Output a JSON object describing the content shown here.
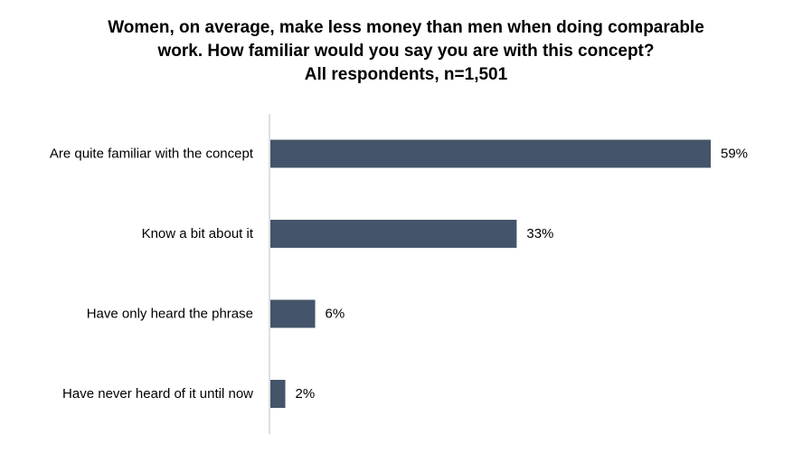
{
  "title_lines": [
    "Women, on average, make less money than men when doing comparable",
    "work. How familiar would you say you are with this concept?",
    "All respondents, n=1,501"
  ],
  "chart_data": {
    "type": "bar",
    "orientation": "horizontal",
    "title": "Women, on average, make less money than men when doing comparable work. How familiar would you say you are with this concept? All respondents, n=1,501",
    "categories": [
      "Are quite familiar with the concept",
      "Know a bit about it",
      "Have only heard the phrase",
      "Have never heard of it until now"
    ],
    "values": [
      59,
      33,
      6,
      2
    ],
    "value_labels": [
      "59%",
      "33%",
      "6%",
      "2%"
    ],
    "xlim": [
      0,
      59
    ],
    "grid": false,
    "legend": "none",
    "bar_color": "#44546A",
    "axis_color": "#BFBFBF"
  }
}
